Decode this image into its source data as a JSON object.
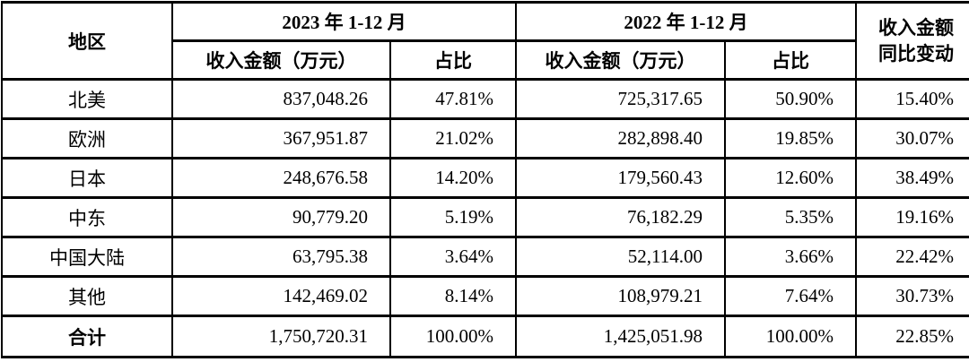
{
  "table": {
    "title_semantic": "revenue-by-region",
    "header": {
      "region": "地区",
      "period_2023": "2023 年 1-12 月",
      "period_2022": "2022 年 1-12 月",
      "revenue_label_2023": "收入金额（万元）",
      "share_label_2023": "占比",
      "revenue_label_2022": "收入金额（万元）",
      "share_label_2022": "占比",
      "yoy_line1": "收入金额",
      "yoy_line2": "同比变动"
    },
    "rows": [
      {
        "region": "北美",
        "rev_2023": "837,048.26",
        "share_2023": "47.81%",
        "rev_2022": "725,317.65",
        "share_2022": "50.90%",
        "yoy": "15.40%"
      },
      {
        "region": "欧洲",
        "rev_2023": "367,951.87",
        "share_2023": "21.02%",
        "rev_2022": "282,898.40",
        "share_2022": "19.85%",
        "yoy": "30.07%"
      },
      {
        "region": "日本",
        "rev_2023": "248,676.58",
        "share_2023": "14.20%",
        "rev_2022": "179,560.43",
        "share_2022": "12.60%",
        "yoy": "38.49%"
      },
      {
        "region": "中东",
        "rev_2023": "90,779.20",
        "share_2023": "5.19%",
        "rev_2022": "76,182.29",
        "share_2022": "5.35%",
        "yoy": "19.16%"
      },
      {
        "region": "中国大陆",
        "rev_2023": "63,795.38",
        "share_2023": "3.64%",
        "rev_2022": "52,114.00",
        "share_2022": "3.66%",
        "yoy": "22.42%"
      },
      {
        "region": "其他",
        "rev_2023": "142,469.02",
        "share_2023": "8.14%",
        "rev_2022": "108,979.21",
        "share_2022": "7.64%",
        "yoy": "30.73%"
      }
    ],
    "total": {
      "region": "合计",
      "rev_2023": "1,750,720.31",
      "share_2023": "100.00%",
      "rev_2022": "1,425,051.98",
      "share_2022": "100.00%",
      "yoy": "22.85%"
    }
  },
  "colors": {
    "border": "#000000",
    "text": "#000000",
    "background": "#ffffff"
  }
}
